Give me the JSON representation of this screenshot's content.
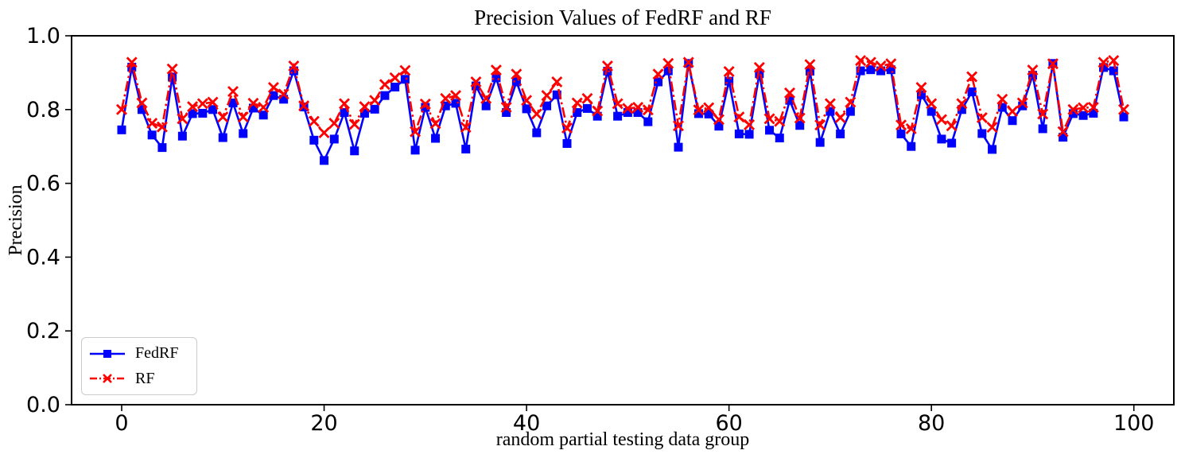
{
  "figure": {
    "title": "Precision Values of FedRF and RF",
    "xlabel": "random partial testing data group",
    "ylabel": "Precision"
  },
  "legend": {
    "position": "lower left",
    "items": [
      {
        "label": "FedRF",
        "color": "#0000ff",
        "line_style": "solid",
        "marker": "square"
      },
      {
        "label": "RF",
        "color": "#ff0000",
        "line_style": "dashdot",
        "marker": "x"
      }
    ]
  },
  "chart_data": {
    "type": "line",
    "title": "Precision Values of FedRF and RF",
    "xlabel": "random partial testing data group",
    "ylabel": "Precision",
    "xlim": [
      -4.95,
      103.95
    ],
    "ylim": [
      0.0,
      1.0
    ],
    "x_ticks": [
      0,
      20,
      40,
      60,
      80,
      100
    ],
    "y_ticks": [
      0.0,
      0.2,
      0.4,
      0.6,
      0.8,
      1.0
    ],
    "grid": false,
    "legend_position": "lower left",
    "x": [
      0,
      1,
      2,
      3,
      4,
      5,
      6,
      7,
      8,
      9,
      10,
      11,
      12,
      13,
      14,
      15,
      16,
      17,
      18,
      19,
      20,
      21,
      22,
      23,
      24,
      25,
      26,
      27,
      28,
      29,
      30,
      31,
      32,
      33,
      34,
      35,
      36,
      37,
      38,
      39,
      40,
      41,
      42,
      43,
      44,
      45,
      46,
      47,
      48,
      49,
      50,
      51,
      52,
      53,
      54,
      55,
      56,
      57,
      58,
      59,
      60,
      61,
      62,
      63,
      64,
      65,
      66,
      67,
      68,
      69,
      70,
      71,
      72,
      73,
      74,
      75,
      76,
      77,
      78,
      79,
      80,
      81,
      82,
      83,
      84,
      85,
      86,
      87,
      88,
      89,
      90,
      91,
      92,
      93,
      94,
      95,
      96,
      97,
      98,
      99
    ],
    "series": [
      {
        "name": "FedRF",
        "color": "#0000ff",
        "line_style": "solid",
        "marker": "square",
        "values": [
          0.745,
          0.915,
          0.8,
          0.731,
          0.697,
          0.888,
          0.728,
          0.789,
          0.79,
          0.8,
          0.724,
          0.818,
          0.735,
          0.804,
          0.785,
          0.838,
          0.828,
          0.905,
          0.807,
          0.717,
          0.662,
          0.72,
          0.792,
          0.688,
          0.79,
          0.801,
          0.838,
          0.861,
          0.882,
          0.69,
          0.806,
          0.722,
          0.81,
          0.817,
          0.693,
          0.864,
          0.81,
          0.886,
          0.792,
          0.875,
          0.802,
          0.737,
          0.81,
          0.84,
          0.708,
          0.792,
          0.803,
          0.782,
          0.904,
          0.782,
          0.792,
          0.792,
          0.767,
          0.875,
          0.905,
          0.698,
          0.925,
          0.789,
          0.788,
          0.755,
          0.877,
          0.734,
          0.733,
          0.897,
          0.744,
          0.723,
          0.825,
          0.757,
          0.904,
          0.711,
          0.795,
          0.734,
          0.795,
          0.905,
          0.908,
          0.905,
          0.908,
          0.734,
          0.7,
          0.84,
          0.795,
          0.72,
          0.709,
          0.8,
          0.848,
          0.735,
          0.692,
          0.806,
          0.77,
          0.81,
          0.893,
          0.748,
          0.925,
          0.725,
          0.789,
          0.784,
          0.79,
          0.914,
          0.905,
          0.78
        ]
      },
      {
        "name": "RF",
        "color": "#ff0000",
        "line_style": "dashdot",
        "marker": "x",
        "values": [
          0.8,
          0.928,
          0.818,
          0.763,
          0.753,
          0.91,
          0.775,
          0.808,
          0.816,
          0.82,
          0.78,
          0.849,
          0.78,
          0.817,
          0.806,
          0.86,
          0.842,
          0.918,
          0.81,
          0.768,
          0.737,
          0.763,
          0.816,
          0.76,
          0.808,
          0.825,
          0.868,
          0.886,
          0.906,
          0.74,
          0.815,
          0.762,
          0.83,
          0.838,
          0.752,
          0.875,
          0.83,
          0.907,
          0.806,
          0.896,
          0.825,
          0.788,
          0.838,
          0.875,
          0.75,
          0.818,
          0.83,
          0.796,
          0.918,
          0.816,
          0.803,
          0.806,
          0.799,
          0.896,
          0.925,
          0.756,
          0.928,
          0.799,
          0.805,
          0.773,
          0.903,
          0.78,
          0.759,
          0.914,
          0.775,
          0.768,
          0.845,
          0.777,
          0.922,
          0.758,
          0.816,
          0.778,
          0.82,
          0.933,
          0.928,
          0.918,
          0.924,
          0.758,
          0.748,
          0.86,
          0.816,
          0.773,
          0.756,
          0.816,
          0.889,
          0.778,
          0.752,
          0.828,
          0.795,
          0.818,
          0.907,
          0.788,
          0.924,
          0.74,
          0.8,
          0.805,
          0.806,
          0.928,
          0.933,
          0.8
        ]
      }
    ]
  }
}
